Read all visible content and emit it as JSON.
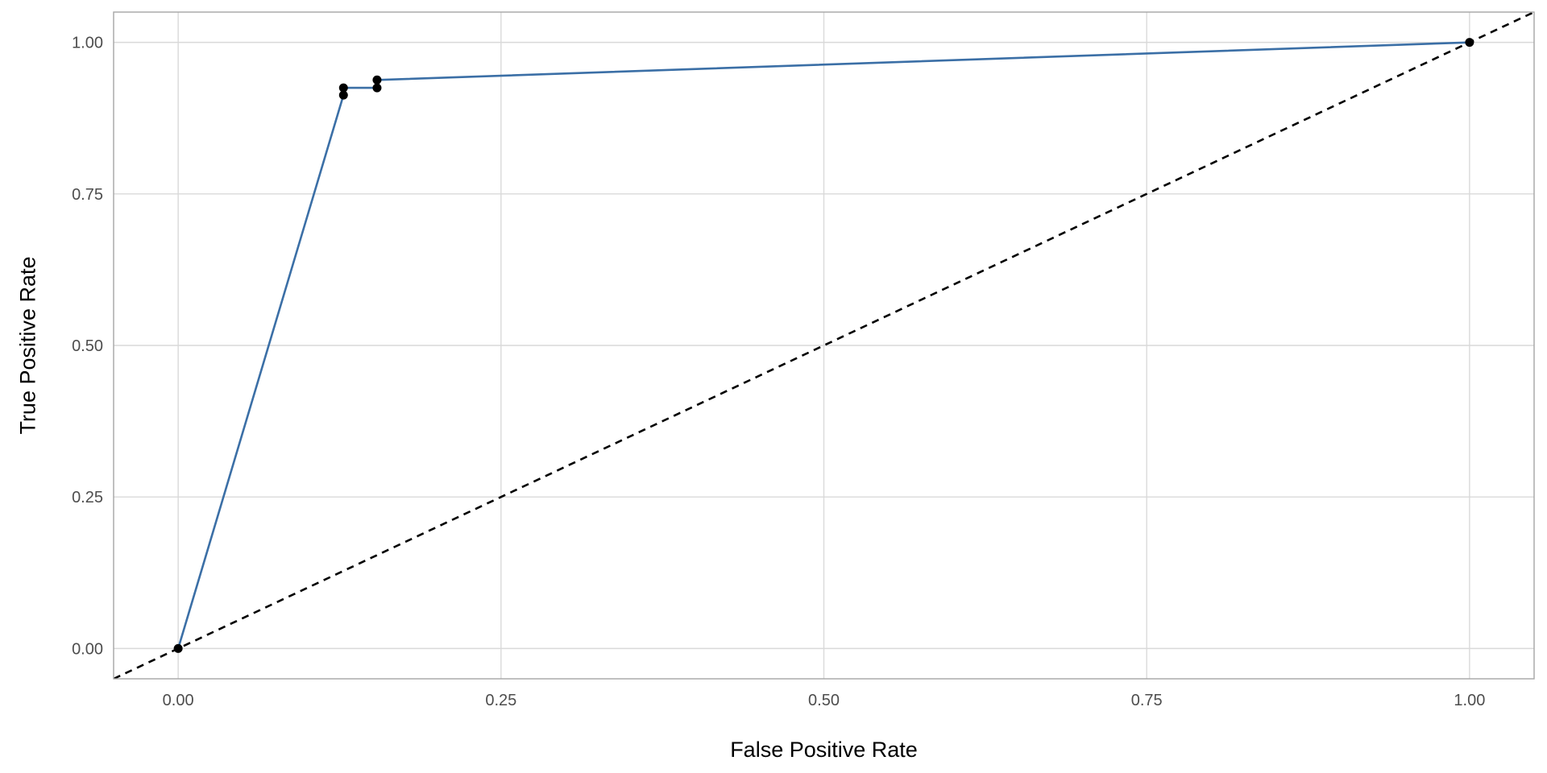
{
  "chart_data": {
    "type": "line",
    "title": "",
    "xlabel": "False Positive Rate",
    "ylabel": "True Positive Rate",
    "xlim": [
      -0.05,
      1.05
    ],
    "ylim": [
      -0.05,
      1.05
    ],
    "x_ticks": [
      0,
      0.25,
      0.5,
      0.75,
      1
    ],
    "x_tick_labels": [
      "0.00",
      "0.25",
      "0.50",
      "0.75",
      "1.00"
    ],
    "y_ticks": [
      0,
      0.25,
      0.5,
      0.75,
      1
    ],
    "y_tick_labels": [
      "0.00",
      "0.25",
      "0.50",
      "0.75",
      "1.00"
    ],
    "grid": true,
    "legend": "none",
    "series": [
      {
        "x": [
          0,
          0.128,
          0.128,
          0.154,
          0.154,
          1
        ],
        "y": [
          0,
          0.913,
          0.925,
          0.925,
          0.938,
          1
        ],
        "markers": true,
        "line_color": "#3b6fa6",
        "marker_color": "#000000"
      }
    ],
    "reference_line": {
      "x": [
        -0.05,
        1.05
      ],
      "y": [
        -0.05,
        1.05
      ],
      "style": "dashed",
      "color": "#000000"
    }
  }
}
